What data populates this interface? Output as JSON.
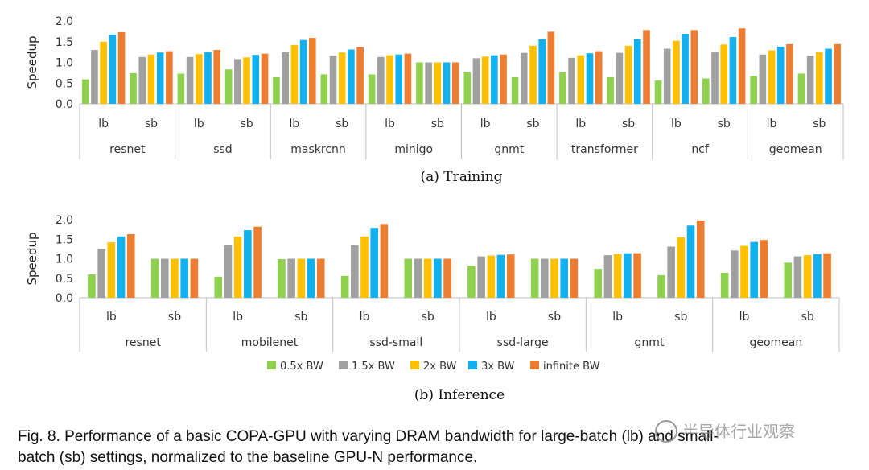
{
  "colors": {
    "0.5x BW": "#8fd14f",
    "1.5x BW": "#a0a0a0",
    "2x BW": "#ffc000",
    "3x BW": "#12b0ef",
    "infinite BW": "#ed7d31"
  },
  "legend": {
    "placement": "bottom",
    "entries": [
      "0.5x BW",
      "1.5x BW",
      "2x BW",
      "3x BW",
      "infinite BW"
    ]
  },
  "chart_data": [
    {
      "type": "bar",
      "title": "(a) Training",
      "ylabel": "Speedup",
      "ylim": [
        0,
        2.0
      ],
      "yticks": [
        "0.0",
        "0.5",
        "1.0",
        "1.5",
        "2.0"
      ],
      "groups": [
        "resnet",
        "ssd",
        "maskrcnn",
        "minigo",
        "gnmt",
        "transformer",
        "ncf",
        "geomean"
      ],
      "subcategories": [
        "lb",
        "sb"
      ],
      "series": [
        {
          "name": "0.5x BW",
          "values": [
            0.59,
            0.74,
            0.73,
            0.83,
            0.64,
            0.71,
            0.71,
            1.0,
            0.76,
            0.64,
            0.76,
            0.64,
            0.56,
            0.61,
            0.67,
            0.73
          ]
        },
        {
          "name": "1.5x BW",
          "values": [
            1.3,
            1.13,
            1.13,
            1.08,
            1.25,
            1.16,
            1.13,
            1.0,
            1.1,
            1.23,
            1.11,
            1.23,
            1.33,
            1.26,
            1.19,
            1.16
          ]
        },
        {
          "name": "2x BW",
          "values": [
            1.5,
            1.19,
            1.2,
            1.12,
            1.42,
            1.24,
            1.17,
            1.0,
            1.14,
            1.4,
            1.17,
            1.4,
            1.52,
            1.43,
            1.29,
            1.25
          ]
        },
        {
          "name": "3x BW",
          "values": [
            1.67,
            1.24,
            1.25,
            1.18,
            1.54,
            1.31,
            1.19,
            1.0,
            1.17,
            1.56,
            1.22,
            1.56,
            1.69,
            1.61,
            1.38,
            1.33
          ]
        },
        {
          "name": "infinite BW",
          "values": [
            1.73,
            1.27,
            1.3,
            1.21,
            1.59,
            1.37,
            1.21,
            1.0,
            1.19,
            1.74,
            1.27,
            1.78,
            1.78,
            1.82,
            1.44,
            1.44
          ]
        }
      ]
    },
    {
      "type": "bar",
      "title": "(b) Inference",
      "ylabel": "Speedup",
      "ylim": [
        0,
        2.0
      ],
      "yticks": [
        "0.0",
        "0.5",
        "1.0",
        "1.5",
        "2.0"
      ],
      "groups": [
        "resnet",
        "mobilenet",
        "ssd-small",
        "ssd-large",
        "gnmt",
        "geomean"
      ],
      "subcategories": [
        "lb",
        "sb"
      ],
      "series": [
        {
          "name": "0.5x BW",
          "values": [
            0.6,
            1.0,
            0.54,
            0.99,
            0.56,
            1.0,
            0.82,
            1.0,
            0.74,
            0.58,
            0.64,
            0.9
          ]
        },
        {
          "name": "1.5x BW",
          "values": [
            1.25,
            1.0,
            1.35,
            1.0,
            1.35,
            1.0,
            1.06,
            1.0,
            1.09,
            1.31,
            1.21,
            1.06
          ]
        },
        {
          "name": "2x BW",
          "values": [
            1.42,
            1.0,
            1.57,
            1.0,
            1.57,
            1.0,
            1.08,
            1.0,
            1.12,
            1.55,
            1.33,
            1.09
          ]
        },
        {
          "name": "3x BW",
          "values": [
            1.57,
            1.0,
            1.73,
            1.0,
            1.79,
            1.0,
            1.1,
            1.0,
            1.14,
            1.85,
            1.43,
            1.12
          ]
        },
        {
          "name": "infinite BW",
          "values": [
            1.63,
            1.0,
            1.82,
            1.0,
            1.89,
            1.0,
            1.11,
            1.0,
            1.14,
            1.98,
            1.48,
            1.14
          ]
        }
      ]
    }
  ],
  "caption": {
    "line1": "Fig. 8.  Performance of a basic COPA-GPU with varying DRAM bandwidth for large-batch (lb) and small-",
    "line2": "batch (sb) settings, normalized to the baseline GPU-N performance."
  },
  "watermark": "半导体行业观察"
}
